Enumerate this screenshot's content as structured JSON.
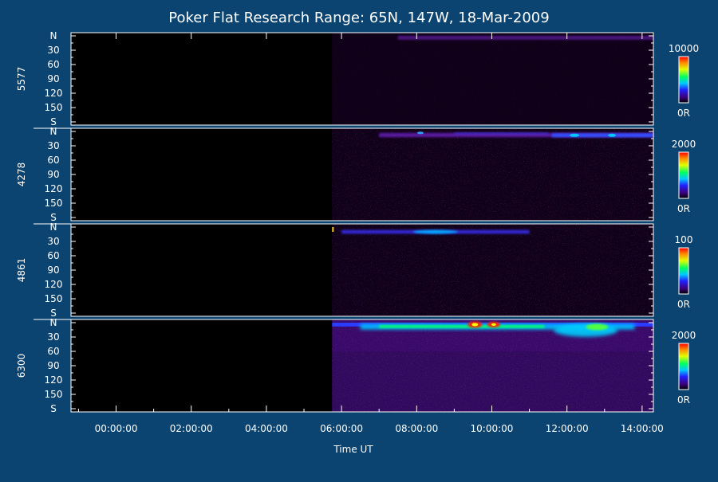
{
  "chart_data": {
    "type": "heatmap",
    "title": "Poker Flat Research Range: 65N, 147W, 18-Mar-2009",
    "xlabel": "Time UT",
    "x_ticks": [
      "00:00:00",
      "02:00:00",
      "04:00:00",
      "06:00:00",
      "08:00:00",
      "10:00:00",
      "12:00:00",
      "14:00:00"
    ],
    "x_tick_hours": [
      0,
      2,
      4,
      6,
      8,
      10,
      12,
      14
    ],
    "x_range_hours": [
      -1.2,
      14.3
    ],
    "y_ticks": [
      "N",
      "30",
      "60",
      "90",
      "120",
      "150",
      "S"
    ],
    "y_tick_values": [
      0,
      30,
      60,
      90,
      120,
      150,
      180
    ],
    "y_range": [
      0,
      180
    ],
    "data_start_hours": 5.75,
    "panels": [
      {
        "name": "5577",
        "cbar_max_label": "10000",
        "cbar_min_label": "0R",
        "activity": "weak emission near the northern horizon after about 07:30 UT"
      },
      {
        "name": "4278",
        "cbar_max_label": "2000",
        "cbar_min_label": "0R",
        "activity": "faint band near 10-20 deg from north, brighter around 12:00-14:00 UT"
      },
      {
        "name": "4861",
        "cbar_max_label": "100",
        "cbar_min_label": "0R",
        "activity": "band near 10 deg from north from 06:00 to 11:00 UT"
      },
      {
        "name": "6300",
        "cbar_max_label": "2000",
        "cbar_min_label": "0R",
        "activity": "strong emission 0-20 deg from north, peaks near 09:30 and 10:00 UT, diffuse glow across the sky"
      }
    ]
  }
}
